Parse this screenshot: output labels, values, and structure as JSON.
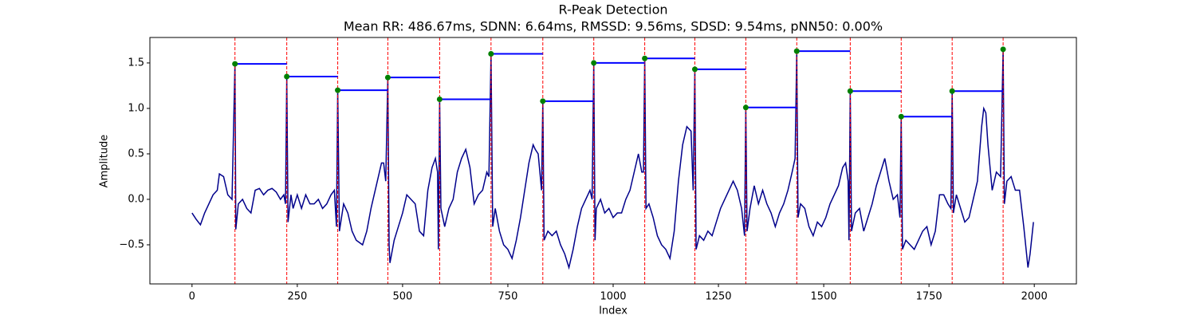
{
  "chart_data": {
    "type": "line",
    "title": "R-Peak Detection",
    "subtitle": "Mean RR: 486.67ms, SDNN: 6.64ms, RMSSD: 9.56ms, SDSD: 9.54ms, pNN50: 0.00%",
    "xlabel": "Index",
    "ylabel": "Amplitude",
    "xlim": [
      -100,
      2100
    ],
    "ylim": [
      -0.93,
      1.78
    ],
    "xticks": [
      0,
      250,
      500,
      750,
      1000,
      1250,
      1500,
      1750,
      2000
    ],
    "yticks": [
      {
        "value": -0.5,
        "label": "−0.5"
      },
      {
        "value": 0,
        "label": "0.0"
      },
      {
        "value": 0.5,
        "label": "0.5"
      },
      {
        "value": 1,
        "label": "1.0"
      },
      {
        "value": 1.5,
        "label": "1.5"
      }
    ],
    "signal": {
      "color": "#00008b",
      "x": [
        0,
        10,
        20,
        30,
        40,
        50,
        60,
        65,
        75,
        85,
        95,
        102,
        104,
        110,
        120,
        130,
        140,
        150,
        160,
        170,
        180,
        190,
        200,
        210,
        218,
        222,
        225,
        228,
        235,
        240,
        250,
        260,
        270,
        280,
        290,
        300,
        310,
        320,
        330,
        338,
        343,
        346,
        350,
        360,
        370,
        380,
        390,
        405,
        415,
        425,
        440,
        450,
        455,
        460,
        465,
        468,
        470,
        480,
        490,
        500,
        510,
        520,
        530,
        540,
        550,
        560,
        570,
        578,
        583,
        585,
        588,
        591,
        600,
        610,
        620,
        630,
        640,
        650,
        660,
        670,
        680,
        690,
        700,
        705,
        710,
        714,
        720,
        730,
        740,
        750,
        760,
        770,
        780,
        790,
        800,
        810,
        815,
        822,
        830,
        833,
        836,
        845,
        855,
        865,
        875,
        885,
        895,
        905,
        915,
        925,
        935,
        945,
        950,
        954,
        957,
        960,
        970,
        980,
        990,
        1000,
        1010,
        1020,
        1030,
        1040,
        1050,
        1060,
        1068,
        1072,
        1075,
        1078,
        1085,
        1095,
        1105,
        1115,
        1125,
        1135,
        1145,
        1155,
        1165,
        1175,
        1185,
        1190,
        1194,
        1197,
        1205,
        1215,
        1225,
        1235,
        1245,
        1255,
        1265,
        1275,
        1285,
        1295,
        1305,
        1312,
        1315,
        1318,
        1325,
        1335,
        1345,
        1355,
        1365,
        1375,
        1385,
        1395,
        1405,
        1415,
        1425,
        1432,
        1436,
        1439,
        1445,
        1455,
        1465,
        1475,
        1485,
        1495,
        1505,
        1515,
        1525,
        1535,
        1545,
        1552,
        1558,
        1560,
        1563,
        1566,
        1575,
        1585,
        1595,
        1605,
        1615,
        1625,
        1635,
        1645,
        1655,
        1665,
        1675,
        1681,
        1684,
        1687,
        1695,
        1705,
        1715,
        1725,
        1735,
        1745,
        1755,
        1765,
        1775,
        1785,
        1795,
        1802,
        1805,
        1808,
        1815,
        1825,
        1835,
        1845,
        1855,
        1865,
        1875,
        1880,
        1885,
        1890,
        1900,
        1910,
        1920,
        1926,
        1929,
        1935,
        1945,
        1955,
        1965,
        1975,
        1985,
        1990,
        1998
      ],
      "values": [
        -0.15,
        -0.22,
        -0.28,
        -0.15,
        -0.05,
        0.05,
        0.1,
        0.28,
        0.25,
        0.05,
        0.0,
        1.49,
        -0.33,
        -0.05,
        0.0,
        -0.1,
        -0.15,
        0.1,
        0.12,
        0.05,
        0.1,
        0.12,
        0.08,
        0.0,
        0.05,
        -0.05,
        1.35,
        -0.25,
        0.05,
        -0.1,
        0.05,
        -0.1,
        0.05,
        -0.05,
        -0.05,
        0.0,
        -0.1,
        -0.05,
        0.05,
        0.1,
        -0.3,
        1.2,
        -0.35,
        -0.05,
        -0.15,
        -0.35,
        -0.45,
        -0.5,
        -0.35,
        -0.1,
        0.2,
        0.4,
        0.4,
        0.2,
        1.34,
        -0.5,
        -0.7,
        -0.45,
        -0.3,
        -0.15,
        0.05,
        0.0,
        -0.05,
        -0.35,
        -0.4,
        0.1,
        0.35,
        0.45,
        0.3,
        -0.55,
        1.1,
        -0.1,
        -0.3,
        -0.1,
        0.0,
        0.3,
        0.45,
        0.55,
        0.35,
        -0.05,
        0.05,
        0.1,
        0.3,
        0.25,
        1.6,
        -0.3,
        -0.1,
        -0.35,
        -0.5,
        -0.55,
        -0.65,
        -0.45,
        -0.2,
        0.1,
        0.4,
        0.6,
        0.55,
        0.5,
        0.1,
        1.08,
        -0.45,
        -0.35,
        -0.4,
        -0.35,
        -0.5,
        -0.6,
        -0.75,
        -0.55,
        -0.3,
        -0.1,
        0.0,
        0.1,
        0.0,
        1.5,
        -0.45,
        -0.1,
        0.0,
        -0.15,
        -0.1,
        -0.2,
        -0.15,
        -0.15,
        0.0,
        0.1,
        0.3,
        0.5,
        0.3,
        0.3,
        1.55,
        -0.1,
        -0.05,
        -0.2,
        -0.4,
        -0.5,
        -0.55,
        -0.65,
        -0.35,
        0.2,
        0.6,
        0.8,
        0.75,
        0.1,
        1.43,
        -0.55,
        -0.4,
        -0.45,
        -0.35,
        -0.4,
        -0.25,
        -0.1,
        0.0,
        0.1,
        0.2,
        0.1,
        -0.1,
        -0.4,
        1.01,
        -0.35,
        -0.1,
        0.15,
        -0.05,
        0.1,
        -0.05,
        -0.15,
        -0.3,
        -0.15,
        -0.05,
        0.1,
        0.3,
        0.45,
        1.63,
        -0.2,
        -0.05,
        -0.1,
        -0.3,
        -0.4,
        -0.25,
        -0.3,
        -0.2,
        -0.05,
        0.05,
        0.15,
        0.35,
        0.4,
        0.2,
        -0.45,
        1.19,
        -0.35,
        -0.15,
        -0.1,
        -0.35,
        -0.2,
        -0.05,
        0.15,
        0.3,
        0.45,
        0.2,
        0.0,
        0.05,
        -0.2,
        0.91,
        -0.55,
        -0.45,
        -0.5,
        -0.55,
        -0.45,
        -0.35,
        -0.3,
        -0.5,
        -0.35,
        0.05,
        0.05,
        -0.05,
        -0.1,
        1.19,
        -0.15,
        0.05,
        -0.1,
        -0.25,
        -0.2,
        0.0,
        0.2,
        0.8,
        1.0,
        0.95,
        0.6,
        0.1,
        0.3,
        0.25,
        1.65,
        -0.05,
        0.2,
        0.25,
        0.1,
        0.1,
        -0.3,
        -0.75,
        -0.6,
        -0.25
      ]
    },
    "peaks": {
      "color": "#008000",
      "marker_line_color": "#ff0000",
      "rr_line_color": "#0000ff",
      "x": [
        102,
        225,
        346,
        465,
        588,
        710,
        833,
        954,
        1075,
        1194,
        1315,
        1436,
        1563,
        1684,
        1805,
        1926
      ],
      "values": [
        1.49,
        1.35,
        1.2,
        1.34,
        1.1,
        1.6,
        1.08,
        1.5,
        1.55,
        1.43,
        1.01,
        1.63,
        1.19,
        0.91,
        1.19,
        1.65
      ]
    }
  }
}
